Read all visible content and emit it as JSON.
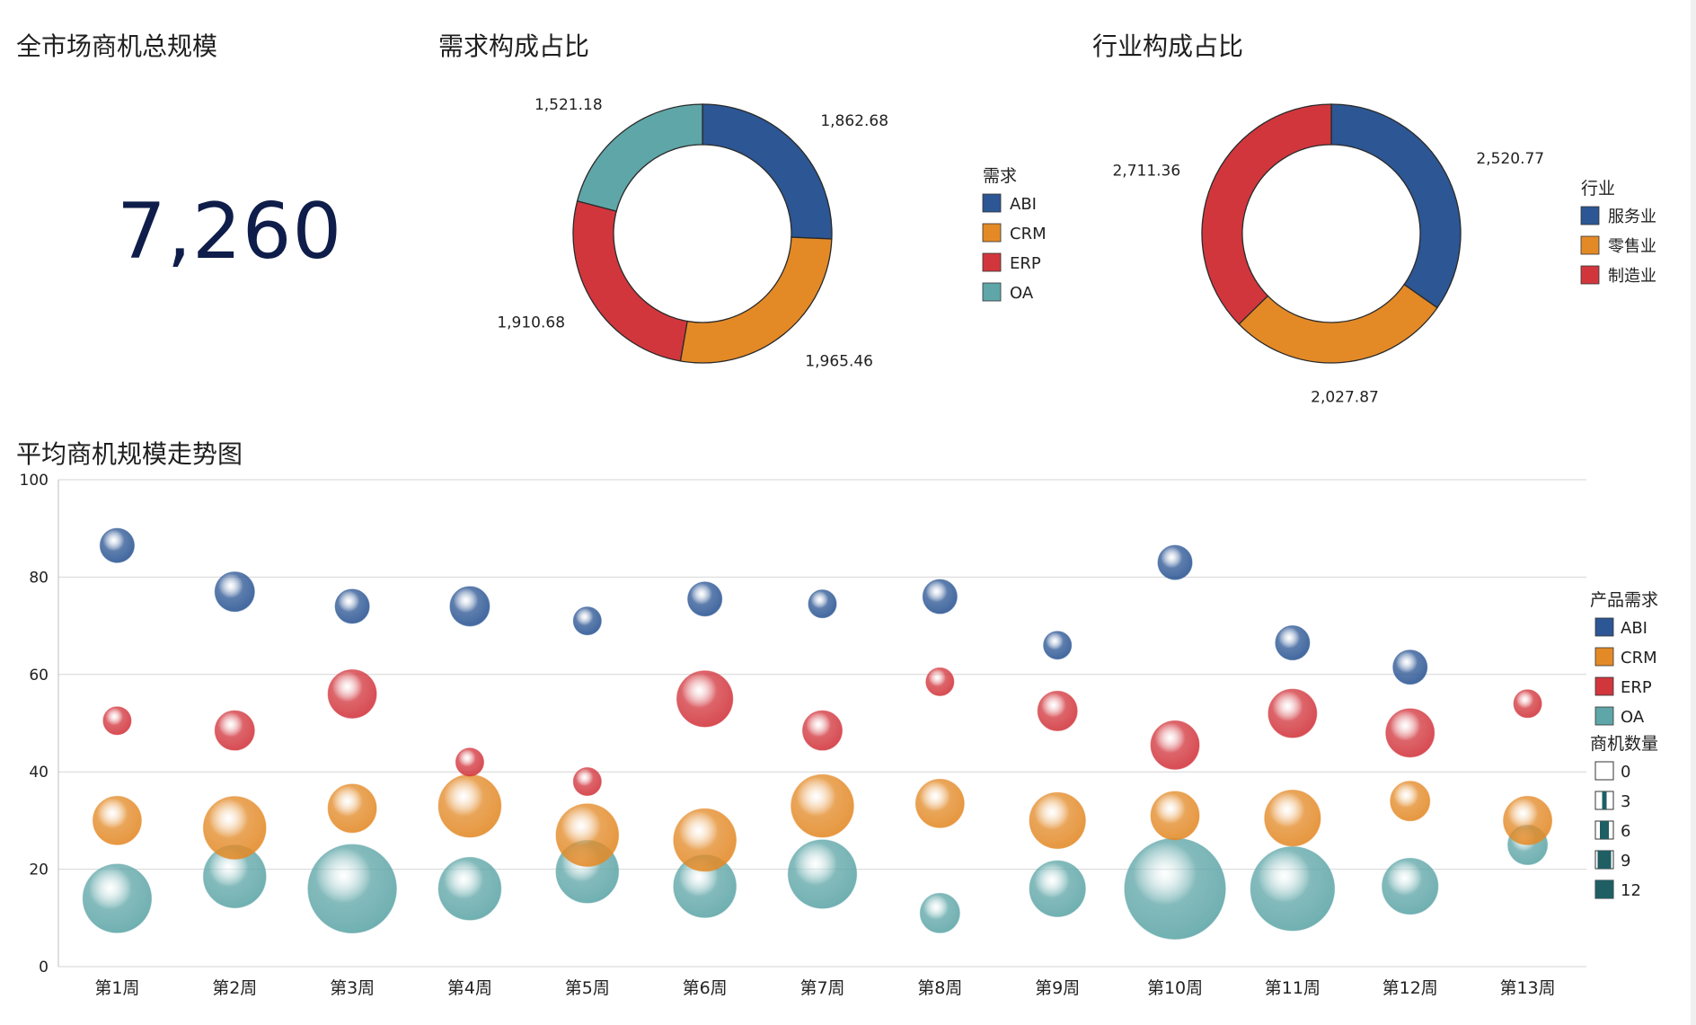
{
  "kpi": {
    "title": "全市场商机总规模",
    "value": "7,260"
  },
  "demand_title": "需求构成占比",
  "industry_title": "行业构成占比",
  "trend_title": "平均商机规模走势图",
  "colors": {
    "ABI": "#2c5694",
    "CRM": "#e38a27",
    "ERP": "#d2363d",
    "OA": "#5fa6a8"
  },
  "chart_data": [
    {
      "type": "pie",
      "variant": "donut",
      "title": "需求构成占比",
      "legend_title": "需求",
      "legend_position": "right",
      "slices": [
        {
          "label": "ABI",
          "value": 1862.68,
          "display": "1,862.68",
          "color": "#2c5694"
        },
        {
          "label": "CRM",
          "value": 1965.46,
          "display": "1,965.46",
          "color": "#e38a27"
        },
        {
          "label": "ERP",
          "value": 1910.68,
          "display": "1,910.68",
          "color": "#d2363d"
        },
        {
          "label": "OA",
          "value": 1521.18,
          "display": "1,521.18",
          "color": "#5fa6a8"
        }
      ]
    },
    {
      "type": "pie",
      "variant": "donut",
      "title": "行业构成占比",
      "legend_title": "行业",
      "legend_position": "right",
      "slices": [
        {
          "label": "服务业",
          "value": 2520.77,
          "display": "2,520.77",
          "color": "#2c5694"
        },
        {
          "label": "零售业",
          "value": 2027.87,
          "display": "2,027.87",
          "color": "#e38a27"
        },
        {
          "label": "制造业",
          "value": 2711.36,
          "display": "2,711.36",
          "color": "#d2363d"
        }
      ]
    },
    {
      "type": "scatter",
      "variant": "bubble",
      "title": "平均商机规模走势图",
      "categories": [
        "第1周",
        "第2周",
        "第3周",
        "第4周",
        "第5周",
        "第6周",
        "第7周",
        "第8周",
        "第9周",
        "第10周",
        "第11周",
        "第12周",
        "第13周"
      ],
      "ylim": [
        0,
        100
      ],
      "yticks": [
        0,
        20,
        40,
        60,
        80,
        100
      ],
      "grid": true,
      "legend_position": "right",
      "color_legend_title": "产品需求",
      "size_legend_title": "商机数量",
      "size_legend": [
        0,
        3,
        6,
        9,
        12
      ],
      "size_max": 12,
      "series": [
        {
          "name": "OA",
          "color": "#5fa6a8",
          "values": [
            14,
            18.5,
            16,
            16,
            19.5,
            16.5,
            19,
            11,
            16,
            16,
            16,
            16.5,
            25
          ],
          "sizes": [
            6,
            5,
            10,
            5,
            5,
            5,
            6,
            2,
            4,
            13,
            9,
            4,
            2
          ]
        },
        {
          "name": "CRM",
          "color": "#e38a27",
          "values": [
            30,
            28.5,
            32.5,
            33,
            27,
            26,
            33,
            33.5,
            30,
            31,
            30.5,
            34,
            30
          ],
          "sizes": [
            3,
            5,
            3,
            5,
            5,
            5,
            5,
            3,
            4,
            3,
            4,
            2,
            3
          ]
        },
        {
          "name": "ERP",
          "color": "#d2363d",
          "values": [
            50.5,
            48.5,
            56,
            42,
            38,
            55,
            48.5,
            58.5,
            52.5,
            45.5,
            52,
            48,
            54
          ],
          "sizes": [
            1,
            2,
            3,
            1,
            1,
            4,
            2,
            1,
            2,
            3,
            3,
            3,
            1
          ]
        },
        {
          "name": "ABI",
          "color": "#2c5694",
          "values": [
            86.5,
            77,
            74,
            74,
            71,
            75.5,
            74.5,
            76,
            66,
            83,
            66.5,
            61.5,
            0
          ],
          "sizes": [
            1.5,
            2,
            1.5,
            2,
            1,
            1.5,
            1,
            1.5,
            1,
            1.5,
            1.5,
            1.5,
            0
          ]
        }
      ]
    }
  ]
}
